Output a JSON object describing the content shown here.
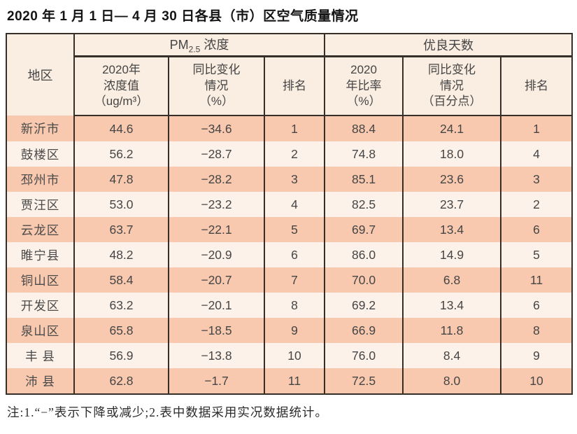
{
  "title": "2020 年 1 月 1 日— 4 月 30 日各县（市）区空气质量情况",
  "table": {
    "region_header": "地区",
    "pm25_group": {
      "pre": "PM",
      "sub": "2.5",
      "post": " 浓度"
    },
    "good_days_header": "优良天数",
    "subheaders": [
      "2020年\n浓度值\n（ug/m³）",
      "同比变化\n情况\n（%）",
      "排名",
      "2020\n年比率\n（%）",
      "同比变化\n情况\n（百分点）",
      "排名"
    ],
    "rows": [
      [
        "新沂市",
        "44.6",
        "−34.6",
        "1",
        "88.4",
        "24.1",
        "1"
      ],
      [
        "鼓楼区",
        "56.2",
        "−28.7",
        "2",
        "74.8",
        "18.0",
        "4"
      ],
      [
        "邳州市",
        "47.8",
        "−28.2",
        "3",
        "85.1",
        "23.6",
        "3"
      ],
      [
        "贾汪区",
        "53.0",
        "−23.2",
        "4",
        "82.5",
        "23.7",
        "2"
      ],
      [
        "云龙区",
        "63.7",
        "−22.1",
        "5",
        "69.7",
        "13.4",
        "6"
      ],
      [
        "睢宁县",
        "48.2",
        "−20.9",
        "6",
        "86.0",
        "14.9",
        "5"
      ],
      [
        "铜山区",
        "58.4",
        "−20.7",
        "7",
        "70.0",
        "6.8",
        "11"
      ],
      [
        "开发区",
        "63.2",
        "−20.1",
        "8",
        "69.2",
        "13.4",
        "6"
      ],
      [
        "泉山区",
        "65.8",
        "−18.5",
        "9",
        "66.9",
        "11.8",
        "8"
      ],
      [
        "丰 县",
        "56.9",
        "−13.8",
        "10",
        "76.0",
        "8.4",
        "9"
      ],
      [
        "沛 县",
        "62.8",
        "−1.7",
        "11",
        "72.5",
        "8.0",
        "10"
      ]
    ]
  },
  "note": "注:1.“−”表示下降或减少;2.表中数据采用实况数据统计。",
  "colors": {
    "row_dark": "#f8c9af",
    "row_light": "#fdf2e9",
    "header_bg": "#faede1",
    "border": "#352e29"
  }
}
